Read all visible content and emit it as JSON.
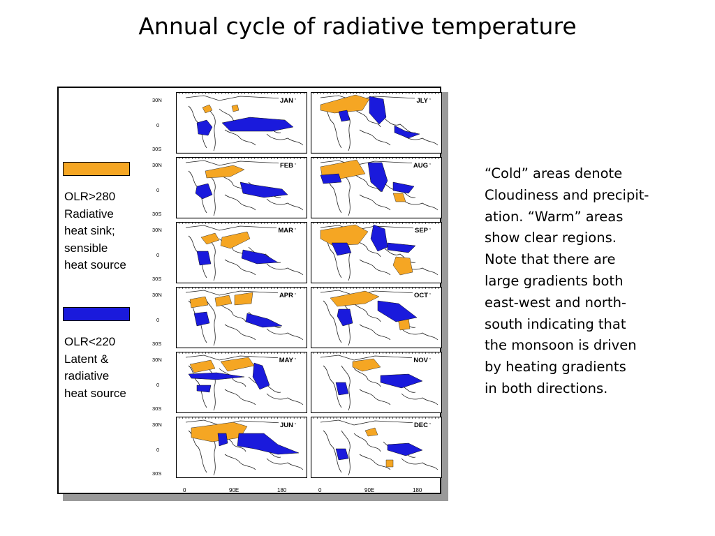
{
  "title": "Annual cycle of radiative temperature",
  "legend": {
    "warm": {
      "color": "#f5a623",
      "lines": [
        "OLR>280",
        "Radiative",
        "heat sink;",
        "sensible",
        "heat source"
      ]
    },
    "cold": {
      "color": "#1a1adc",
      "lines": [
        "OLR<220",
        "Latent &",
        "radiative",
        "heat source"
      ]
    }
  },
  "months": {
    "left": [
      "JAN",
      "FEB",
      "MAR",
      "APR",
      "MAY",
      "JUN"
    ],
    "right": [
      "JLY",
      "AUG",
      "SEP",
      "OCT",
      "NOV",
      "DEC"
    ]
  },
  "lat_labels": [
    "30N",
    "0",
    "30S"
  ],
  "lon_labels": [
    "0",
    "90E",
    "180"
  ],
  "note_lines": [
    "“Cold” areas denote",
    "Cloudiness and precipit-",
    "ation.  “Warm” areas",
    "show clear regions.",
    "Note that there are",
    "large gradients both",
    "east-west and north-",
    "south indicating that",
    "the monsoon is driven",
    "by heating gradients",
    "in both directions."
  ]
}
